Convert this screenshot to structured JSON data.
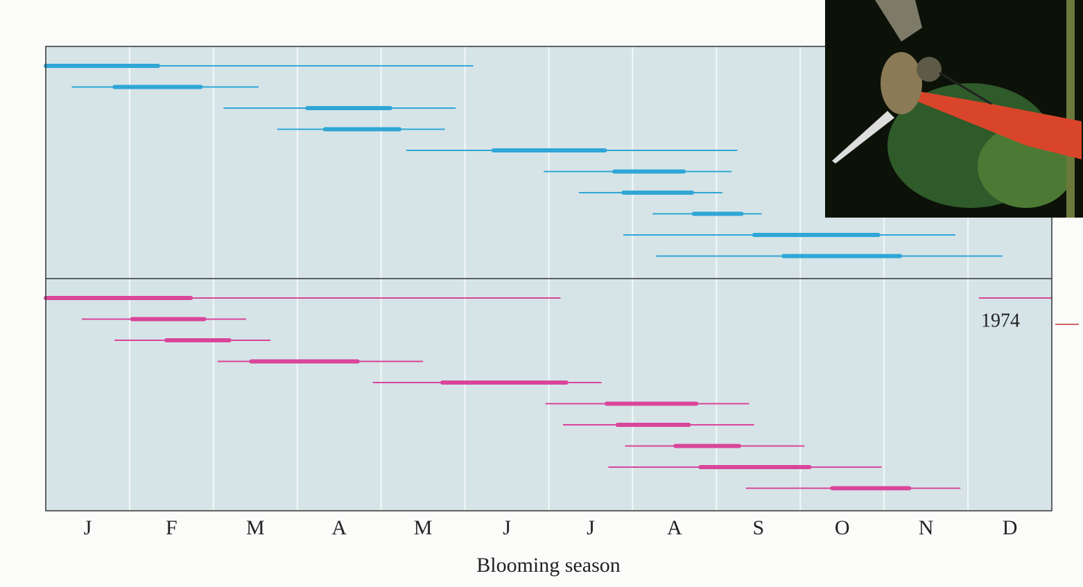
{
  "chart_data": {
    "type": "range",
    "x_label": "Blooming season",
    "categories": [
      "J",
      "F",
      "M",
      "A",
      "M",
      "J",
      "J",
      "A",
      "S",
      "O",
      "N",
      "D"
    ],
    "xlim": [
      0,
      12
    ],
    "annotation": "1974",
    "panels": [
      {
        "color": "#2fa6d6",
        "rows": [
          {
            "start": 0,
            "end": 5.1,
            "peak_start": 0,
            "peak_end": 1.34
          },
          {
            "start": 0.31,
            "end": 2.54,
            "peak_start": 0.82,
            "peak_end": 1.85
          },
          {
            "start": 2.12,
            "end": 4.89,
            "peak_start": 3.12,
            "peak_end": 4.11
          },
          {
            "start": 2.76,
            "end": 4.76,
            "peak_start": 3.33,
            "peak_end": 4.22
          },
          {
            "start": 4.3,
            "end": 8.25,
            "peak_start": 5.34,
            "peak_end": 6.67
          },
          {
            "start": 5.94,
            "end": 8.18,
            "peak_start": 6.78,
            "peak_end": 7.61
          },
          {
            "start": 6.36,
            "end": 8.07,
            "peak_start": 6.89,
            "peak_end": 7.71
          },
          {
            "start": 7.24,
            "end": 8.54,
            "peak_start": 7.73,
            "peak_end": 8.3
          },
          {
            "start": 6.89,
            "end": 10.85,
            "peak_start": 8.45,
            "peak_end": 9.93
          },
          {
            "start": 7.28,
            "end": 11.41,
            "peak_start": 8.8,
            "peak_end": 10.19
          }
        ]
      },
      {
        "color": "#d9459a",
        "rows": [
          {
            "start": 0,
            "end": 6.14,
            "peak_start": 0,
            "peak_end": 1.73,
            "extra_start": 11.13,
            "extra_end": 12
          },
          {
            "start": 0.43,
            "end": 2.39,
            "peak_start": 1.03,
            "peak_end": 1.89
          },
          {
            "start": 0.82,
            "end": 2.68,
            "peak_start": 1.44,
            "peak_end": 2.19
          },
          {
            "start": 2.05,
            "end": 4.5,
            "peak_start": 2.45,
            "peak_end": 3.72
          },
          {
            "start": 3.9,
            "end": 6.63,
            "peak_start": 4.73,
            "peak_end": 6.21
          },
          {
            "start": 5.96,
            "end": 8.39,
            "peak_start": 6.69,
            "peak_end": 7.76
          },
          {
            "start": 6.17,
            "end": 8.45,
            "peak_start": 6.82,
            "peak_end": 7.67
          },
          {
            "start": 6.91,
            "end": 9.05,
            "peak_start": 7.51,
            "peak_end": 8.27
          },
          {
            "start": 6.71,
            "end": 9.97,
            "peak_start": 7.81,
            "peak_end": 9.11
          },
          {
            "start": 8.35,
            "end": 10.91,
            "peak_start": 9.38,
            "peak_end": 10.3
          }
        ]
      }
    ]
  }
}
